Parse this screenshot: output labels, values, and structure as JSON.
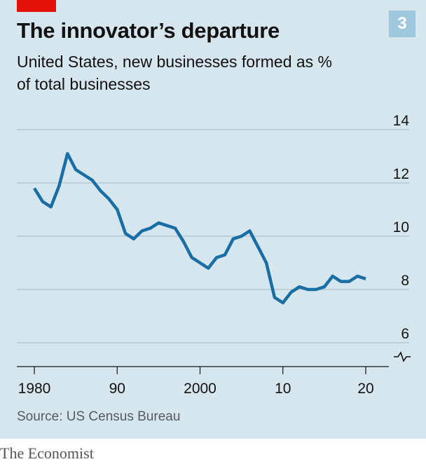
{
  "header": {
    "title": "The innovator’s departure",
    "subtitle": "United States, new businesses formed as % of total businesses",
    "badge": "3"
  },
  "footer": {
    "source": "Source: US Census Bureau",
    "brand": "The Economist"
  },
  "colors": {
    "background": "#d6e6ee",
    "line": "#1a6ea3",
    "accent": "#e3120b",
    "badge": "#9fc8de"
  },
  "chart_data": {
    "type": "line",
    "title": "The innovator’s departure",
    "subtitle": "United States, new businesses formed as % of total businesses",
    "xlabel": "",
    "ylabel": "",
    "ylim": [
      6,
      14
    ],
    "xlim": [
      1980,
      2020
    ],
    "y_ticks": [
      6,
      8,
      10,
      12,
      14
    ],
    "y_tick_labels": [
      "6",
      "8",
      "10",
      "12",
      "14"
    ],
    "x_ticks": [
      1980,
      1990,
      2000,
      2010,
      2020
    ],
    "x_tick_labels": [
      "1980",
      "90",
      "2000",
      "10",
      "20"
    ],
    "grid": true,
    "axis_break": true,
    "series": [
      {
        "x": [
          1980,
          1981,
          1982,
          1983,
          1984,
          1985,
          1986,
          1987,
          1988,
          1989,
          1990,
          1991,
          1992,
          1993,
          1994,
          1995,
          1996,
          1997,
          1998,
          1999,
          2000,
          2001,
          2002,
          2003,
          2004,
          2005,
          2006,
          2007,
          2008,
          2009,
          2010,
          2011,
          2012,
          2013,
          2014,
          2015,
          2016,
          2017,
          2018,
          2019,
          2020
        ],
        "values": [
          11.8,
          11.3,
          11.1,
          11.9,
          13.1,
          12.5,
          12.3,
          12.1,
          11.7,
          11.4,
          11.0,
          10.1,
          9.9,
          10.2,
          10.3,
          10.5,
          10.4,
          10.3,
          9.8,
          9.2,
          9.0,
          8.8,
          9.2,
          9.3,
          9.9,
          10.0,
          10.2,
          9.6,
          9.0,
          7.7,
          7.5,
          7.9,
          8.1,
          8.0,
          8.0,
          8.1,
          8.5,
          8.3,
          8.3,
          8.5,
          8.4
        ]
      }
    ]
  }
}
